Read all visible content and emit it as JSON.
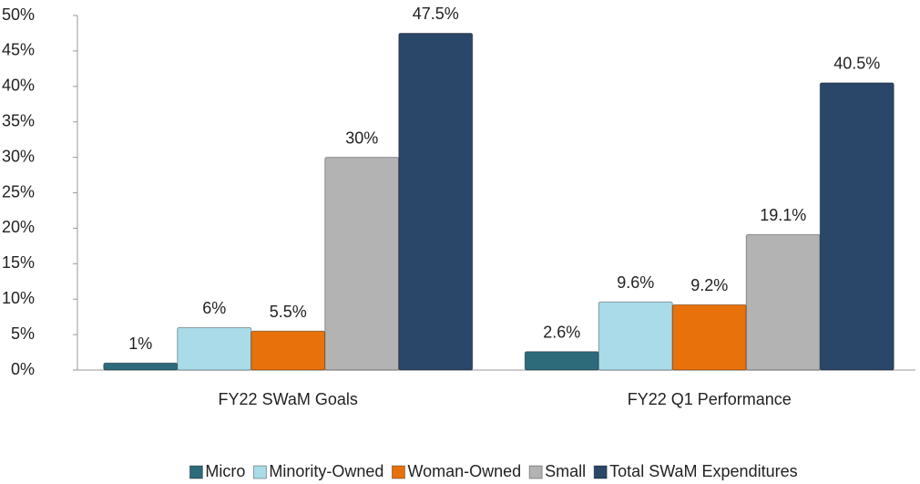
{
  "chart_data": {
    "type": "bar",
    "categories": [
      "FY22 SWaM Goals",
      "FY22 Q1 Performance"
    ],
    "series": [
      {
        "name": "Micro",
        "color": "#2e6b7a",
        "values": [
          1,
          2.6
        ],
        "value_labels": [
          "1%",
          "2.6%"
        ]
      },
      {
        "name": "Minority-Owned",
        "color": "#a9dbe8",
        "values": [
          6,
          9.6
        ],
        "value_labels": [
          "6%",
          "9.6%"
        ]
      },
      {
        "name": "Woman-Owned",
        "color": "#e8710c",
        "values": [
          5.5,
          9.2
        ],
        "value_labels": [
          "5.5%",
          "9.2%"
        ]
      },
      {
        "name": "Small",
        "color": "#b3b3b3",
        "values": [
          30,
          19.1
        ],
        "value_labels": [
          "30%",
          "19.1%"
        ]
      },
      {
        "name": "Total SWaM Expenditures",
        "color": "#2a4668",
        "values": [
          47.5,
          40.5
        ],
        "value_labels": [
          "47.5%",
          "40.5%"
        ]
      }
    ],
    "ylim": [
      0,
      50
    ],
    "yticks": [
      {
        "value": 0,
        "label": "0%"
      },
      {
        "value": 5,
        "label": "5%"
      },
      {
        "value": 10,
        "label": "10%"
      },
      {
        "value": 15,
        "label": "15%"
      },
      {
        "value": 20,
        "label": "20%"
      },
      {
        "value": 25,
        "label": "25%"
      },
      {
        "value": 30,
        "label": "30%"
      },
      {
        "value": 35,
        "label": "35%"
      },
      {
        "value": 40,
        "label": "40%"
      },
      {
        "value": 45,
        "label": "45%"
      },
      {
        "value": 50,
        "label": "50%"
      }
    ],
    "grid": false,
    "legend": "bottom"
  }
}
